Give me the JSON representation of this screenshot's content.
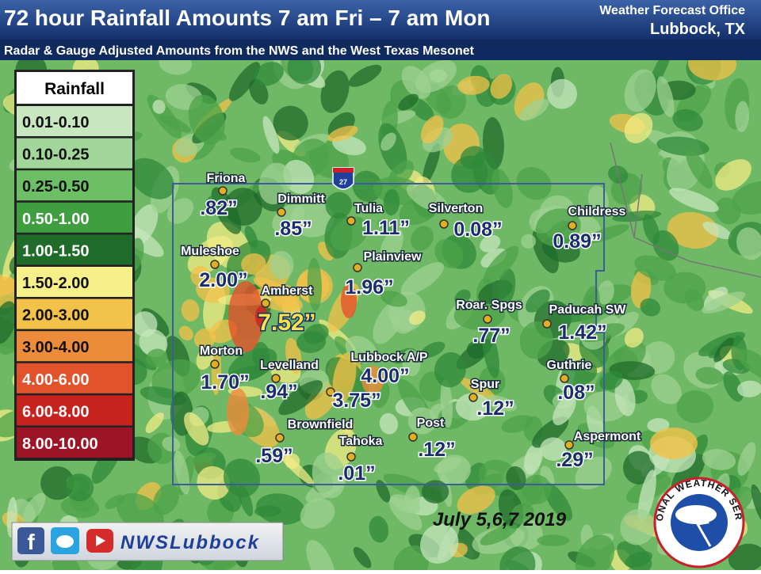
{
  "header": {
    "title": "72 hour Rainfall Amounts 7 am Fri – 7 am Mon",
    "office": "Weather Forecast Office",
    "location": "Lubbock, TX",
    "subtitle": "Radar & Gauge Adjusted Amounts from the NWS and the West Texas Mesonet"
  },
  "legend": {
    "title": "Rainfall",
    "items": [
      {
        "label": "0.01-0.10",
        "color": "#c8e6c0"
      },
      {
        "label": "0.10-0.25",
        "color": "#a3d69b"
      },
      {
        "label": "0.25-0.50",
        "color": "#6cbf64"
      },
      {
        "label": "0.50-1.00",
        "color": "#3e9e40"
      },
      {
        "label": "1.00-1.50",
        "color": "#1e6b2a"
      },
      {
        "label": "1.50-2.00",
        "color": "#f7f08a"
      },
      {
        "label": "2.00-3.00",
        "color": "#f3c24a"
      },
      {
        "label": "3.00-4.00",
        "color": "#ec8b3a"
      },
      {
        "label": "4.00-6.00",
        "color": "#e2532c"
      },
      {
        "label": "6.00-8.00",
        "color": "#c8221f"
      },
      {
        "label": "8.00-10.00",
        "color": "#9c1426"
      }
    ]
  },
  "stations": [
    {
      "name": "Friona",
      "amount": ".82”"
    },
    {
      "name": "Dimmitt",
      "amount": ".85”"
    },
    {
      "name": "Tulia",
      "amount": "1.11”"
    },
    {
      "name": "Silverton",
      "amount": "0.08”"
    },
    {
      "name": "Childress",
      "amount": "0.89”"
    },
    {
      "name": "Muleshoe",
      "amount": "2.00”"
    },
    {
      "name": "Plainview",
      "amount": "1.96”"
    },
    {
      "name": "Amherst",
      "amount": "7.52”"
    },
    {
      "name": "Roar. Spgs",
      "amount": ".77”"
    },
    {
      "name": "Paducah SW",
      "amount": "1.42”"
    },
    {
      "name": "Morton",
      "amount": "1.70”"
    },
    {
      "name": "Levelland",
      "amount": ".94”"
    },
    {
      "name": "Lubbock A/P",
      "amount": "4.00”"
    },
    {
      "amount": "3.75”"
    },
    {
      "name": "Spur",
      "amount": ".12”"
    },
    {
      "name": "Guthrie",
      "amount": ".08”"
    },
    {
      "name": "Brownfield",
      "amount": ".59”"
    },
    {
      "name": "Post",
      "amount": ".12”"
    },
    {
      "name": "Tahoka",
      "amount": ".01”"
    },
    {
      "name": "Aspermont",
      "amount": ".29”"
    }
  ],
  "interstate": "27",
  "date": "July 5,6,7 2019",
  "social": {
    "handle": "NWSLubbock"
  },
  "logo": {
    "text": "NATIONAL WEATHER SERVICE"
  }
}
